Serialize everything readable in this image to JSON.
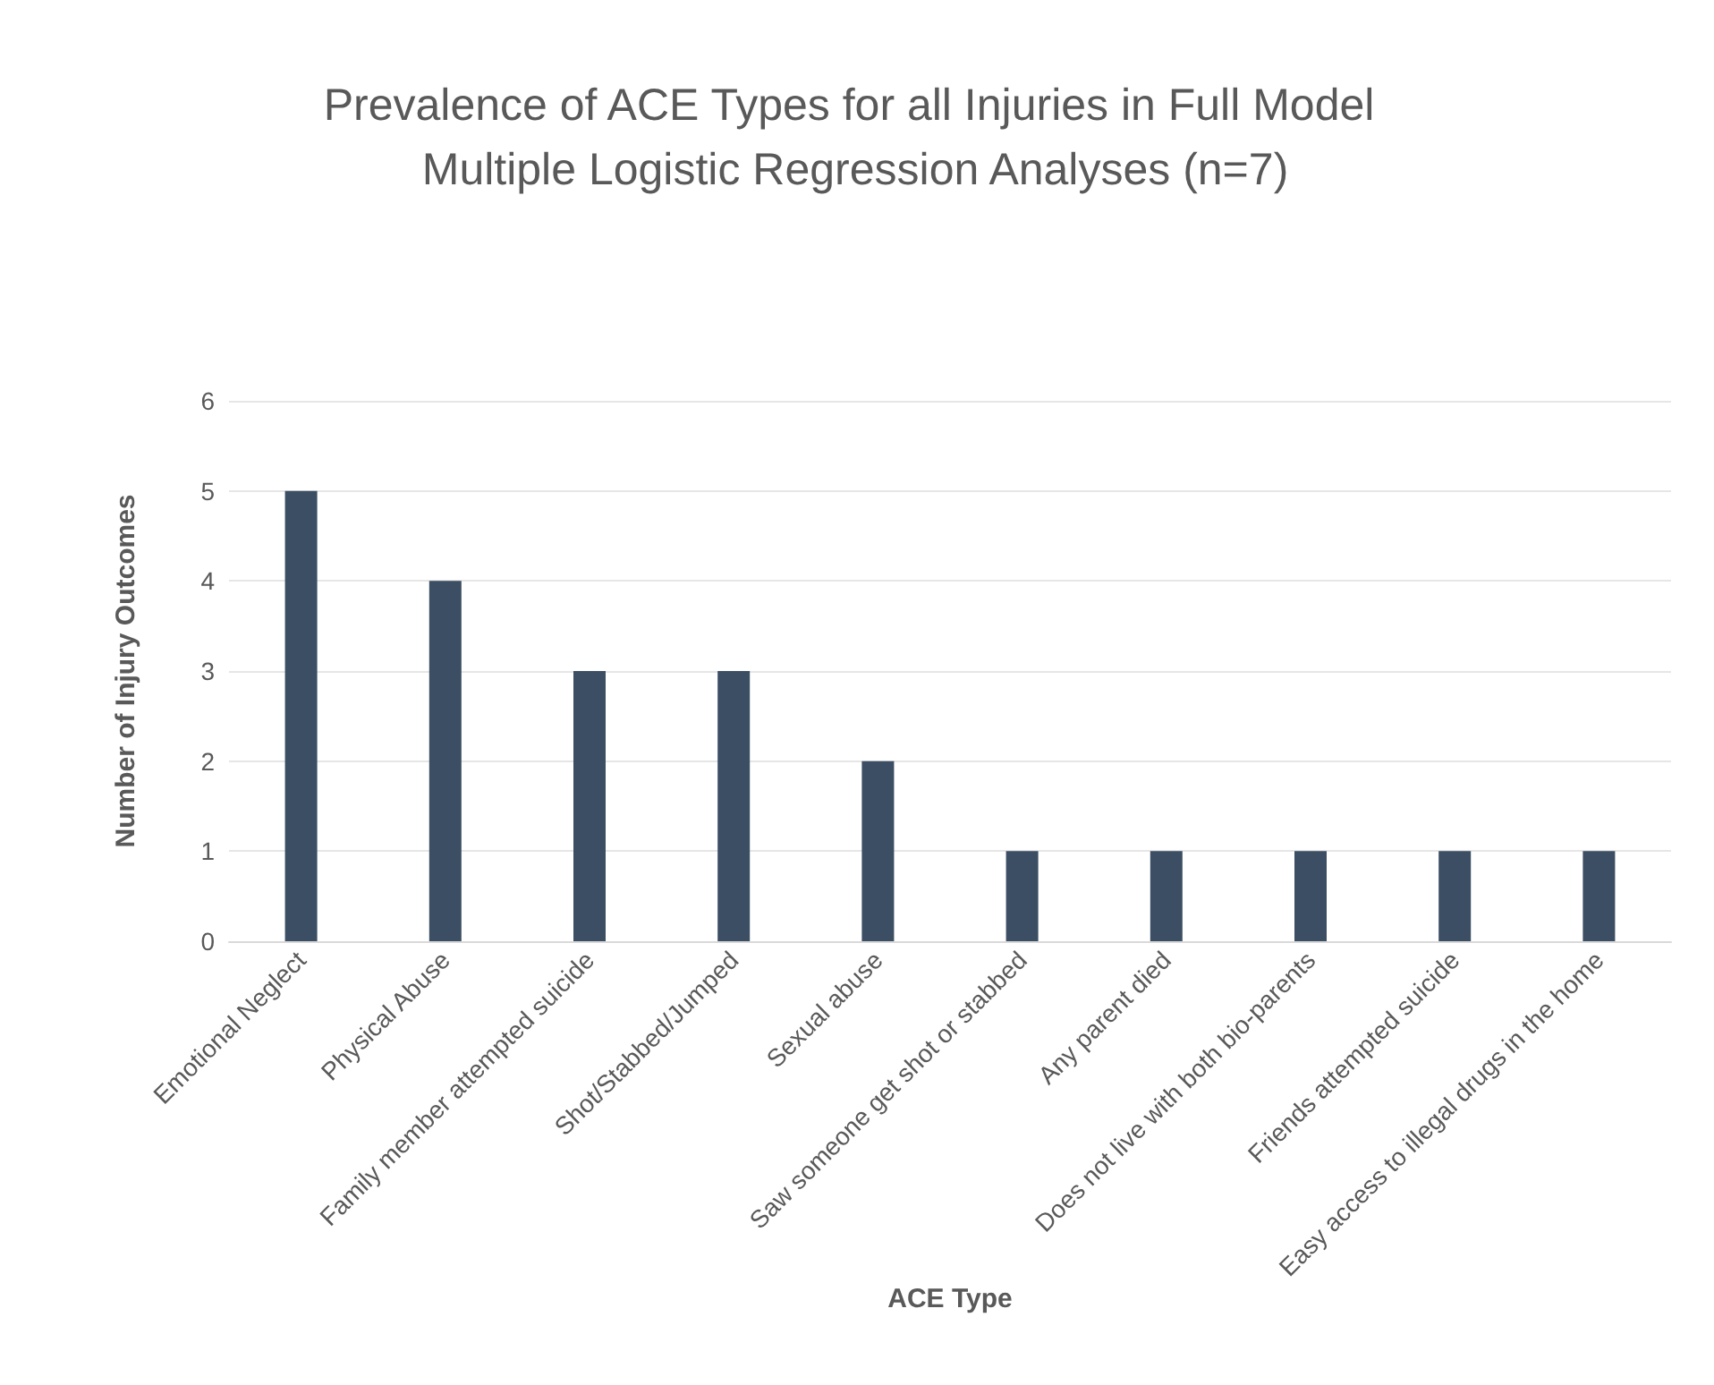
{
  "chart_data": {
    "type": "bar",
    "title": "Prevalence of ACE Types for all Injuries in Full Model Multiple Logistic Regression Analyses (n=7)",
    "categories": [
      "Emotional Neglect",
      "Physical Abuse",
      "Family member attempted suicide",
      "Shot/Stabbed/Jumped",
      "Sexual abuse",
      "Saw someone get shot or stabbed",
      "Any parent died",
      "Does not live with both bio-parents",
      "Friends attempted suicide",
      "Easy access to illegal drugs in the home"
    ],
    "values": [
      5,
      4,
      3,
      3,
      2,
      1,
      1,
      1,
      1,
      1
    ],
    "color": "#3b4e63",
    "xlabel": "ACE Type",
    "ylabel": "Number of Injury Outcomes",
    "ylim": [
      0,
      6
    ],
    "yticks": [
      0,
      1,
      2,
      3,
      4,
      5,
      6
    ],
    "grid": "y"
  }
}
